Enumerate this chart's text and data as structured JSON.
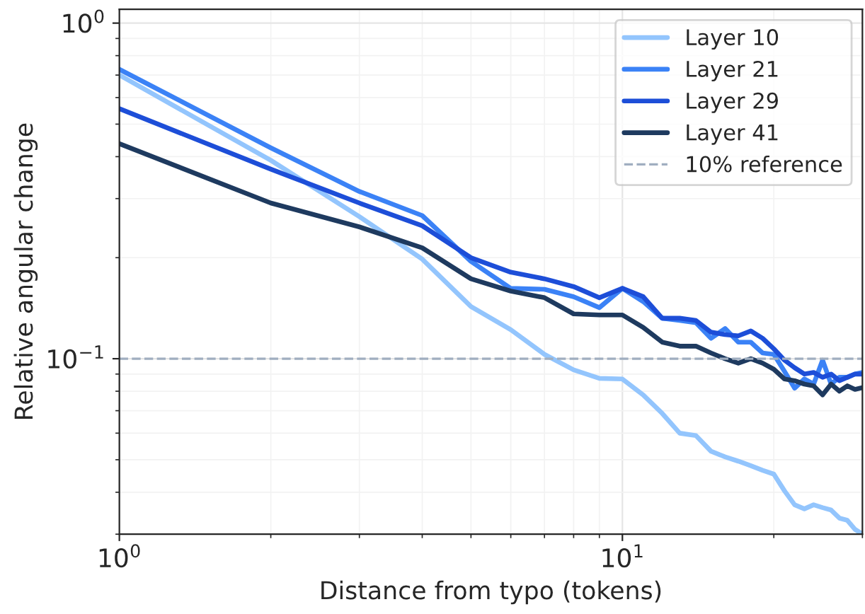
{
  "chart_data": {
    "type": "line",
    "xlabel": "Distance from typo (tokens)",
    "ylabel": "Relative angular change",
    "log": "xy",
    "grid": true,
    "legend": "top right",
    "marker": "none",
    "line_style": "solid",
    "x": [
      1,
      2,
      3,
      4,
      5,
      6,
      7,
      8,
      9,
      10,
      11,
      12,
      13,
      14,
      15,
      16,
      17,
      18,
      19,
      20,
      21,
      22,
      23,
      24,
      25,
      26,
      27,
      28,
      29,
      30
    ],
    "xlim": [
      1,
      30
    ],
    "ylim": [
      0.03,
      1.1
    ],
    "xticks": [
      {
        "value": 1,
        "label": "10$^{0}$"
      },
      {
        "value": 10,
        "label": "10$^{1}$"
      }
    ],
    "yticks": [
      {
        "value": 0.1,
        "label": "10$^{−1}$"
      },
      {
        "value": 1,
        "label": "10$^{0}$"
      }
    ],
    "series": [
      {
        "name": "Layer 10",
        "color": "#93c5fd",
        "values": [
          0.7,
          0.39,
          0.265,
          0.198,
          0.143,
          0.122,
          0.103,
          0.0926,
          0.0874,
          0.087,
          0.078,
          0.0687,
          0.06,
          0.059,
          0.053,
          0.051,
          0.0495,
          0.048,
          0.0465,
          0.0453,
          0.0404,
          0.0367,
          0.0357,
          0.0367,
          0.036,
          0.0354,
          0.0335,
          0.033,
          0.031,
          0.03
        ]
      },
      {
        "name": "Layer 21",
        "color": "#3b82f6",
        "values": [
          0.728,
          0.425,
          0.315,
          0.267,
          0.195,
          0.162,
          0.161,
          0.153,
          0.142,
          0.162,
          0.148,
          0.132,
          0.13,
          0.128,
          0.115,
          0.123,
          0.112,
          0.112,
          0.104,
          0.103,
          0.0917,
          0.0817,
          0.087,
          0.084,
          0.099,
          0.084,
          0.088,
          0.088,
          0.09,
          0.091
        ]
      },
      {
        "name": "Layer 29",
        "color": "#1d4ed8",
        "values": [
          0.556,
          0.367,
          0.291,
          0.249,
          0.2,
          0.181,
          0.173,
          0.164,
          0.152,
          0.162,
          0.153,
          0.132,
          0.132,
          0.13,
          0.12,
          0.118,
          0.117,
          0.121,
          0.115,
          0.107,
          0.099,
          0.094,
          0.09,
          0.091,
          0.088,
          0.09,
          0.086,
          0.088,
          0.09,
          0.09
        ]
      },
      {
        "name": "Layer 41",
        "color": "#1e3a5f",
        "values": [
          0.437,
          0.291,
          0.247,
          0.214,
          0.173,
          0.159,
          0.152,
          0.136,
          0.135,
          0.135,
          0.124,
          0.112,
          0.109,
          0.109,
          0.104,
          0.1,
          0.097,
          0.1,
          0.097,
          0.093,
          0.087,
          0.086,
          0.084,
          0.083,
          0.078,
          0.084,
          0.08,
          0.083,
          0.081,
          0.082
        ]
      }
    ],
    "ref_lines": [
      {
        "axis": "y",
        "value": 0.1,
        "label": "10% reference",
        "color": "#a0aec0",
        "line_style": "dashed"
      }
    ]
  }
}
